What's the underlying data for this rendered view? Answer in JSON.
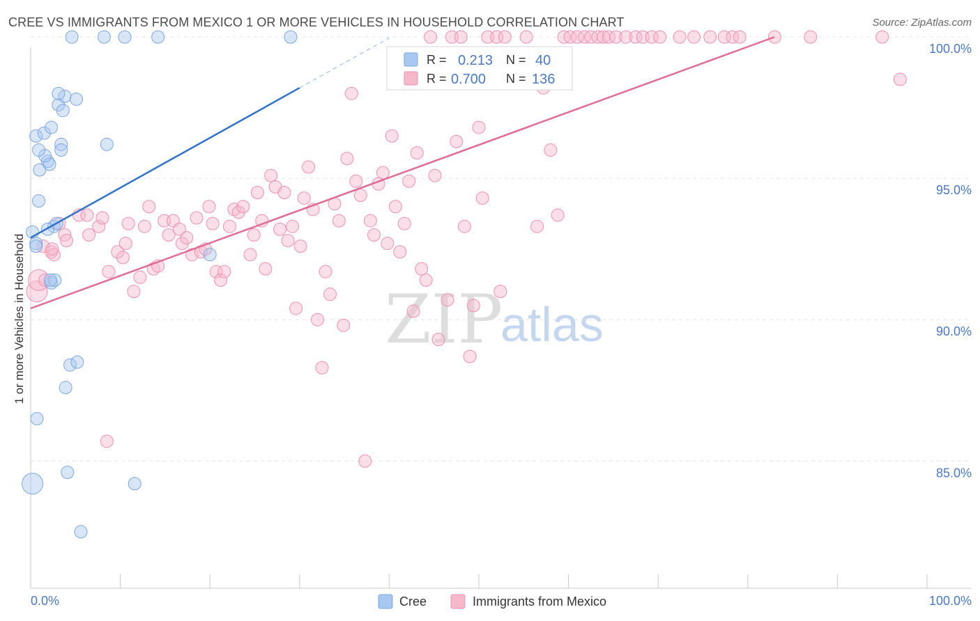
{
  "title": "CREE VS IMMIGRANTS FROM MEXICO 1 OR MORE VEHICLES IN HOUSEHOLD CORRELATION CHART",
  "source": "Source: ZipAtlas.com",
  "watermark": {
    "part1": "ZIP",
    "part2": "atlas"
  },
  "legend": {
    "r_label": "R =",
    "n_label": "N =",
    "entries": [
      {
        "name": "Cree",
        "r": "0.213",
        "n": "40",
        "color": "#a9c8f0"
      },
      {
        "name": "Immigrants from Mexico",
        "r": "0.700",
        "n": "136",
        "color": "#f6b8cb"
      }
    ]
  },
  "chart_data": {
    "type": "scatter",
    "title": "CREE VS IMMIGRANTS FROM MEXICO 1 OR MORE VEHICLES IN HOUSEHOLD CORRELATION CHART",
    "xlabel": "",
    "ylabel": "1 or more Vehicles in Household",
    "xlim": [
      0,
      100
    ],
    "ylim": [
      80.5,
      100.2
    ],
    "x_tick_labels": [
      "0.0%",
      "100.0%"
    ],
    "y_ticks": [
      85,
      90,
      95,
      100
    ],
    "y_tick_labels": [
      "85.0%",
      "90.0%",
      "95.0%",
      "100.0%"
    ],
    "series": [
      {
        "name": "Cree",
        "color": "#7aa7e0",
        "trend": {
          "x": [
            0,
            30
          ],
          "y": [
            92.9,
            98.2
          ],
          "dashed_to": [
            40,
            100
          ]
        },
        "points": [
          [
            0.2,
            93.1
          ],
          [
            0.6,
            92.7
          ],
          [
            2.6,
            93.3
          ],
          [
            2.9,
            93.4
          ],
          [
            0.6,
            96.5
          ],
          [
            1.5,
            96.6
          ],
          [
            2.3,
            96.8
          ],
          [
            3.4,
            96.2
          ],
          [
            3.4,
            96.0
          ],
          [
            1.0,
            95.3
          ],
          [
            1.9,
            95.6
          ],
          [
            2.1,
            95.5
          ],
          [
            3.1,
            97.6
          ],
          [
            3.6,
            97.4
          ],
          [
            3.8,
            97.9
          ],
          [
            3.1,
            98.0
          ],
          [
            5.1,
            97.8
          ],
          [
            0.9,
            94.2
          ],
          [
            1.9,
            93.2
          ],
          [
            2.3,
            91.3
          ],
          [
            2.7,
            91.4
          ],
          [
            8.5,
            96.2
          ],
          [
            4.6,
            100.0
          ],
          [
            8.2,
            100.0
          ],
          [
            10.5,
            100.0
          ],
          [
            14.2,
            100.0
          ],
          [
            29.0,
            100.0
          ],
          [
            20.0,
            92.3
          ],
          [
            4.4,
            88.4
          ],
          [
            5.2,
            88.5
          ],
          [
            3.9,
            87.6
          ],
          [
            0.7,
            86.5
          ],
          [
            4.1,
            84.6
          ],
          [
            11.6,
            84.2
          ],
          [
            0.2,
            84.2
          ],
          [
            5.6,
            82.5
          ],
          [
            2.2,
            91.4
          ],
          [
            0.6,
            92.6
          ],
          [
            1.6,
            95.8
          ],
          [
            0.9,
            96.0
          ]
        ]
      },
      {
        "name": "Immigrants from Mexico",
        "color": "#ee8fae",
        "trend": {
          "x": [
            0,
            83
          ],
          "y": [
            90.4,
            100.0
          ]
        },
        "points": [
          [
            0.7,
            91.0
          ],
          [
            0.9,
            91.4
          ],
          [
            1.4,
            92.6
          ],
          [
            2.3,
            92.4
          ],
          [
            2.6,
            92.3
          ],
          [
            3.2,
            93.4
          ],
          [
            3.8,
            93.0
          ],
          [
            4.0,
            92.8
          ],
          [
            5.4,
            93.7
          ],
          [
            6.3,
            93.7
          ],
          [
            6.5,
            93.0
          ],
          [
            7.6,
            93.3
          ],
          [
            8.0,
            93.6
          ],
          [
            8.5,
            85.7
          ],
          [
            8.7,
            91.7
          ],
          [
            9.7,
            92.4
          ],
          [
            10.3,
            92.2
          ],
          [
            10.6,
            92.7
          ],
          [
            10.9,
            93.4
          ],
          [
            11.5,
            91.0
          ],
          [
            12.2,
            91.5
          ],
          [
            12.7,
            93.3
          ],
          [
            13.2,
            94.0
          ],
          [
            13.7,
            91.8
          ],
          [
            14.2,
            91.9
          ],
          [
            14.9,
            93.5
          ],
          [
            15.4,
            93.0
          ],
          [
            15.9,
            93.5
          ],
          [
            16.6,
            93.2
          ],
          [
            16.9,
            92.7
          ],
          [
            17.4,
            92.9
          ],
          [
            18.0,
            92.3
          ],
          [
            18.5,
            93.6
          ],
          [
            19.0,
            92.4
          ],
          [
            19.5,
            92.5
          ],
          [
            19.9,
            94.0
          ],
          [
            20.3,
            93.4
          ],
          [
            20.7,
            91.7
          ],
          [
            21.2,
            91.4
          ],
          [
            21.6,
            91.7
          ],
          [
            22.2,
            93.3
          ],
          [
            22.7,
            93.9
          ],
          [
            23.2,
            93.8
          ],
          [
            23.7,
            94.0
          ],
          [
            24.5,
            92.3
          ],
          [
            24.9,
            93.0
          ],
          [
            25.3,
            94.5
          ],
          [
            25.8,
            93.5
          ],
          [
            26.2,
            91.8
          ],
          [
            26.8,
            95.1
          ],
          [
            27.3,
            94.7
          ],
          [
            27.8,
            93.2
          ],
          [
            28.3,
            94.5
          ],
          [
            28.7,
            92.8
          ],
          [
            29.2,
            93.3
          ],
          [
            29.6,
            90.4
          ],
          [
            30.1,
            92.6
          ],
          [
            30.5,
            94.3
          ],
          [
            31.0,
            95.4
          ],
          [
            31.5,
            93.9
          ],
          [
            32.0,
            90.0
          ],
          [
            32.5,
            88.3
          ],
          [
            32.9,
            91.7
          ],
          [
            33.4,
            90.9
          ],
          [
            33.9,
            94.1
          ],
          [
            34.4,
            93.5
          ],
          [
            34.9,
            89.8
          ],
          [
            35.3,
            95.7
          ],
          [
            35.8,
            98.0
          ],
          [
            36.3,
            94.9
          ],
          [
            36.8,
            94.4
          ],
          [
            37.3,
            85.0
          ],
          [
            37.9,
            93.5
          ],
          [
            38.3,
            93.0
          ],
          [
            38.8,
            94.8
          ],
          [
            39.3,
            95.2
          ],
          [
            39.8,
            92.7
          ],
          [
            40.3,
            96.5
          ],
          [
            40.7,
            94.0
          ],
          [
            41.2,
            92.4
          ],
          [
            41.7,
            93.4
          ],
          [
            42.2,
            94.9
          ],
          [
            42.7,
            90.3
          ],
          [
            43.1,
            95.9
          ],
          [
            43.6,
            91.8
          ],
          [
            44.1,
            91.4
          ],
          [
            44.6,
            100.0
          ],
          [
            45.1,
            95.1
          ],
          [
            45.5,
            89.3
          ],
          [
            46.0,
            98.6
          ],
          [
            46.5,
            90.7
          ],
          [
            47.0,
            100.0
          ],
          [
            47.5,
            96.3
          ],
          [
            48.0,
            100.0
          ],
          [
            48.4,
            93.3
          ],
          [
            49.0,
            88.7
          ],
          [
            49.4,
            90.5
          ],
          [
            50.0,
            96.8
          ],
          [
            50.4,
            94.3
          ],
          [
            51.0,
            100.0
          ],
          [
            51.3,
            99.2
          ],
          [
            52.0,
            100.0
          ],
          [
            52.4,
            91.0
          ],
          [
            52.9,
            100.0
          ],
          [
            53.2,
            98.7
          ],
          [
            55.3,
            100.0
          ],
          [
            56.5,
            93.3
          ],
          [
            57.2,
            98.2
          ],
          [
            58.0,
            96.0
          ],
          [
            58.8,
            93.7
          ],
          [
            59.5,
            100.0
          ],
          [
            60.2,
            100.0
          ],
          [
            61.0,
            100.0
          ],
          [
            61.8,
            100.0
          ],
          [
            62.5,
            100.0
          ],
          [
            63.3,
            100.0
          ],
          [
            63.9,
            100.0
          ],
          [
            64.5,
            100.0
          ],
          [
            65.3,
            100.0
          ],
          [
            66.4,
            100.0
          ],
          [
            67.5,
            100.0
          ],
          [
            68.3,
            100.0
          ],
          [
            69.3,
            100.0
          ],
          [
            70.2,
            100.0
          ],
          [
            72.4,
            100.0
          ],
          [
            74.0,
            100.0
          ],
          [
            75.8,
            100.0
          ],
          [
            77.4,
            100.0
          ],
          [
            78.3,
            100.0
          ],
          [
            79.1,
            100.0
          ],
          [
            83.0,
            100.0
          ],
          [
            87.0,
            100.0
          ],
          [
            95.0,
            100.0
          ],
          [
            97.0,
            98.5
          ],
          [
            1.6,
            91.4
          ],
          [
            2.4,
            92.5
          ]
        ]
      }
    ]
  }
}
